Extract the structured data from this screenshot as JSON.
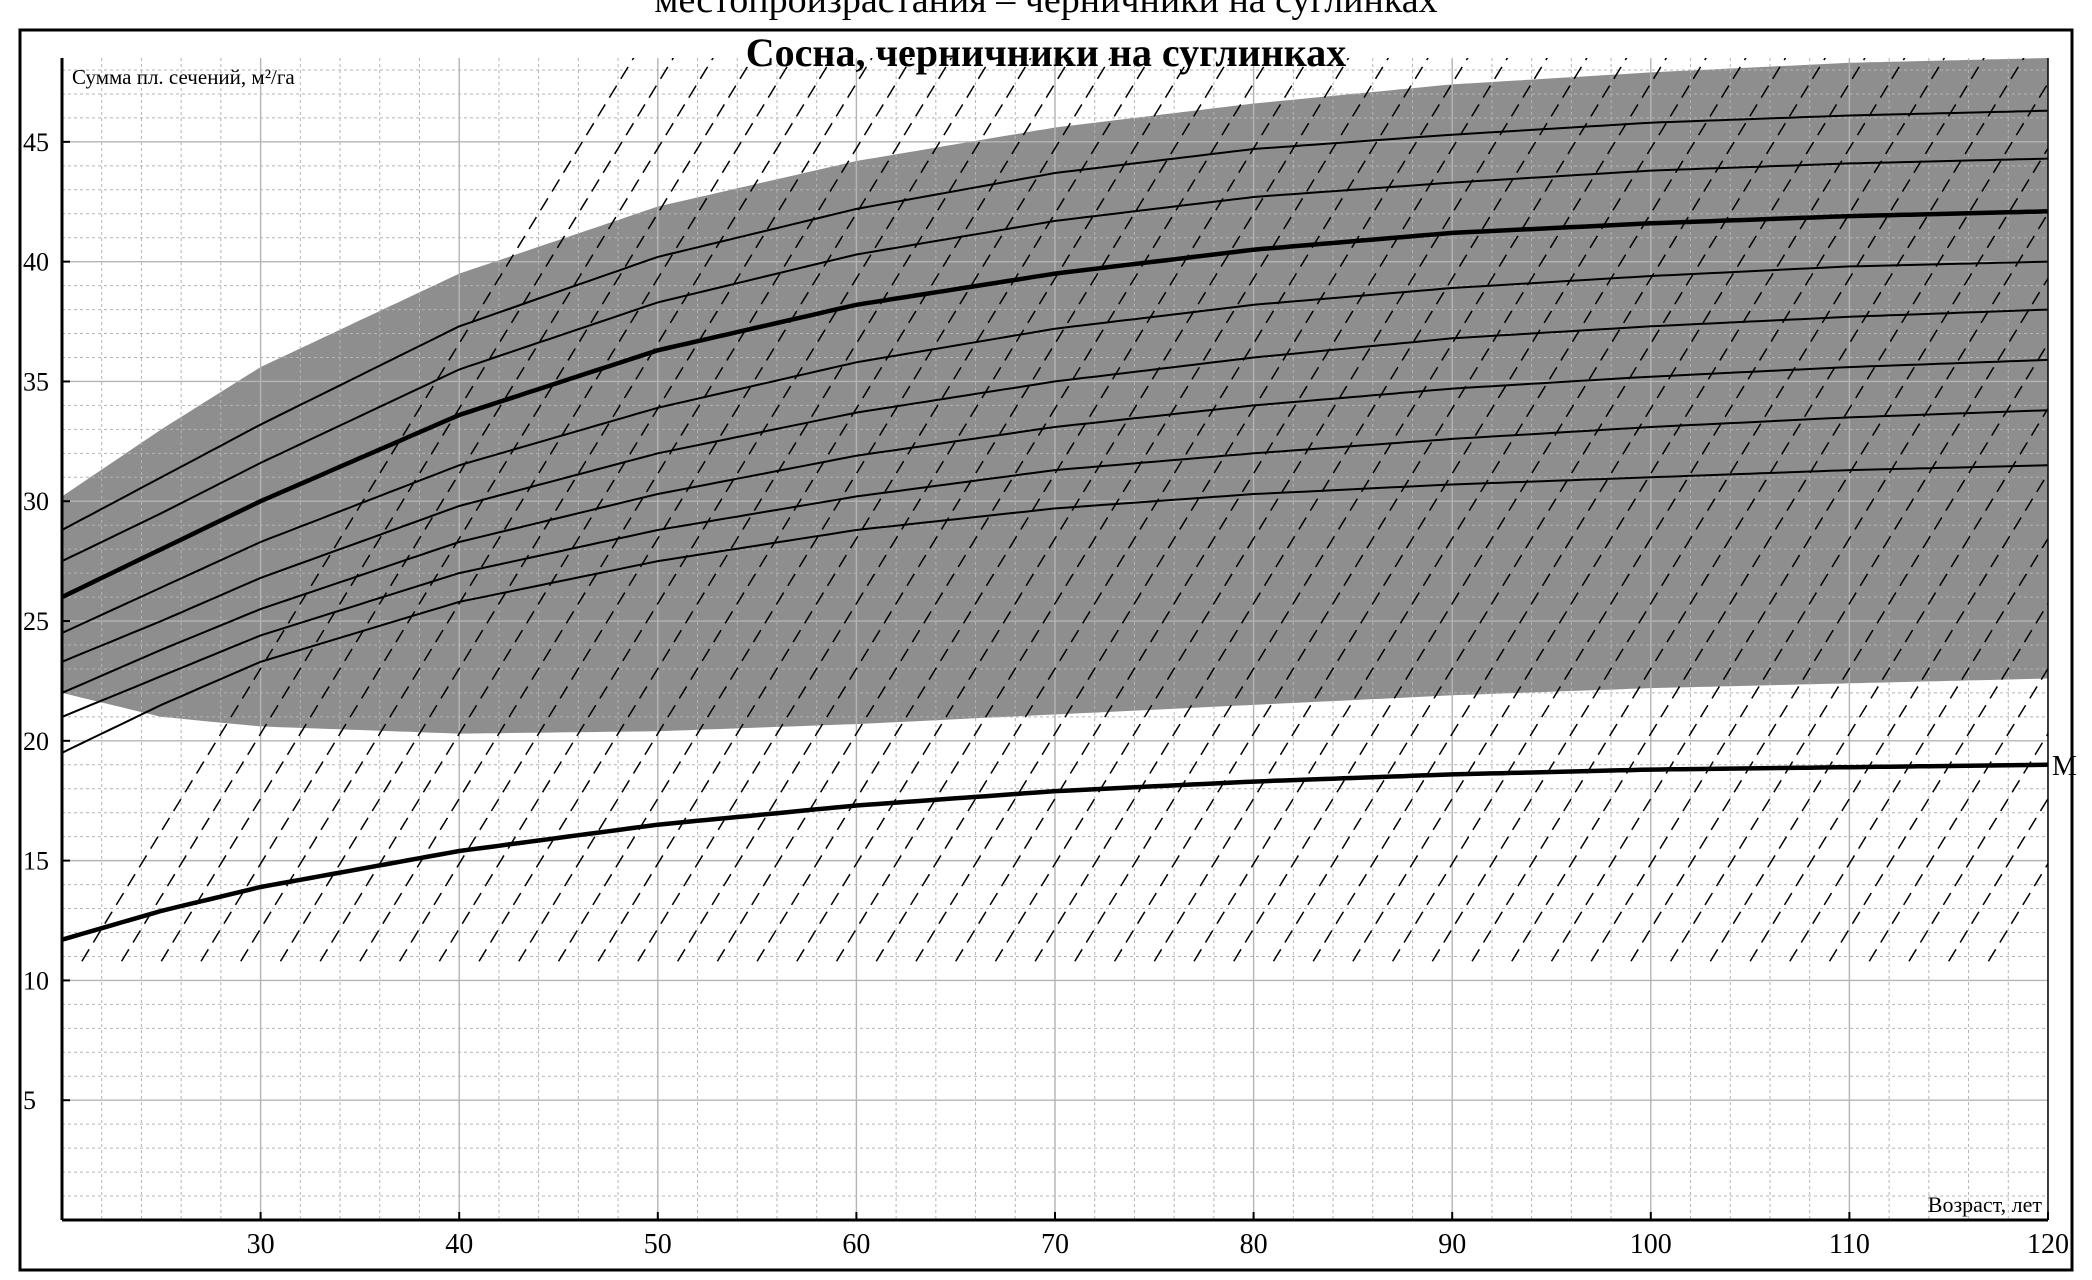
{
  "header_caption": "местопроизрастания – черничники на суглинках",
  "chart_data": {
    "type": "line",
    "title": "Сосна, черничники на суглинках",
    "xlabel": "Возраст, лет",
    "ylabel": "Сумма пл. сечений, м²/га",
    "xlim": [
      20,
      120
    ],
    "ylim": [
      0,
      48.5
    ],
    "x_ticks": [
      30,
      40,
      50,
      60,
      70,
      80,
      90,
      100,
      110,
      120
    ],
    "y_ticks": [
      5,
      10,
      15,
      20,
      25,
      30,
      35,
      40,
      45
    ],
    "grid": true,
    "legend": "none",
    "colors": {
      "band_fill": "#8e8e8e",
      "grid": "#b4b4b4",
      "curve": "#000000",
      "frame": "#000000"
    },
    "band": {
      "upper": {
        "x": [
          20,
          25,
          30,
          40,
          50,
          60,
          70,
          80,
          90,
          100,
          110,
          120
        ],
        "y": [
          30.2,
          33.0,
          35.6,
          39.5,
          42.3,
          44.2,
          45.6,
          46.6,
          47.4,
          47.9,
          48.3,
          48.5
        ]
      },
      "lower": {
        "x": [
          20,
          25,
          30,
          40,
          50,
          60,
          70,
          80,
          90,
          100,
          110,
          120
        ],
        "y": [
          22.0,
          21.0,
          20.6,
          20.3,
          20.4,
          20.7,
          21.1,
          21.5,
          21.9,
          22.2,
          22.4,
          22.6
        ]
      }
    },
    "x_grid": [
      20,
      22,
      24,
      26,
      28,
      30,
      32,
      34,
      36,
      38,
      40,
      42,
      44,
      46,
      48,
      50,
      52,
      54,
      56,
      58,
      60,
      62,
      64,
      66,
      68,
      70,
      72,
      74,
      76,
      78,
      80,
      82,
      84,
      86,
      88,
      90,
      92,
      94,
      96,
      98,
      100,
      102,
      104,
      106,
      108,
      110,
      112,
      114,
      116,
      118,
      120
    ],
    "series": [
      {
        "values": [
          19.5,
          21.5,
          23.3,
          25.8,
          27.5,
          28.8,
          29.7,
          30.3,
          30.7,
          31.0,
          31.3,
          31.5
        ],
        "bold": false
      },
      {
        "values": [
          21.0,
          22.7,
          24.4,
          27.0,
          28.8,
          30.2,
          31.3,
          32.0,
          32.6,
          33.1,
          33.5,
          33.8
        ],
        "bold": false
      },
      {
        "values": [
          22.0,
          23.8,
          25.5,
          28.3,
          30.3,
          31.9,
          33.1,
          34.0,
          34.7,
          35.2,
          35.6,
          35.9
        ],
        "bold": false
      },
      {
        "values": [
          23.3,
          25.0,
          26.8,
          29.8,
          32.0,
          33.7,
          35.0,
          36.0,
          36.8,
          37.3,
          37.7,
          38.0
        ],
        "bold": false
      },
      {
        "values": [
          24.5,
          26.4,
          28.3,
          31.5,
          33.9,
          35.8,
          37.2,
          38.2,
          38.9,
          39.4,
          39.8,
          40.0
        ],
        "bold": false
      },
      {
        "values": [
          26.0,
          28.0,
          30.0,
          33.6,
          36.3,
          38.2,
          39.5,
          40.5,
          41.2,
          41.6,
          41.9,
          42.1
        ],
        "bold": true
      },
      {
        "values": [
          27.5,
          29.5,
          31.6,
          35.5,
          38.3,
          40.3,
          41.7,
          42.7,
          43.3,
          43.8,
          44.1,
          44.3
        ],
        "bold": false
      },
      {
        "values": [
          28.8,
          31.0,
          33.2,
          37.3,
          40.2,
          42.2,
          43.7,
          44.7,
          45.3,
          45.8,
          46.1,
          46.3
        ],
        "bold": false
      },
      {
        "values": [
          11.7,
          12.9,
          13.9,
          15.4,
          16.5,
          17.3,
          17.9,
          18.3,
          18.6,
          18.8,
          18.9,
          19.0
        ],
        "bold": true,
        "label": "М"
      }
    ],
    "diagonals": {
      "solid_start_x": [
        21,
        23,
        25,
        27,
        29,
        31,
        33,
        35,
        37,
        39,
        41,
        43,
        45,
        47,
        49,
        51,
        53,
        55,
        57,
        59,
        61,
        63,
        65,
        67,
        69,
        71,
        73,
        75,
        77,
        79,
        81,
        83,
        85,
        87,
        89,
        91,
        93,
        95,
        97,
        99,
        101,
        103,
        105,
        107,
        109,
        111,
        113,
        115,
        117
      ],
      "solid_start_y": [
        10.8,
        10.8,
        10.8,
        10.8,
        10.8,
        10.8,
        10.8,
        10.8,
        10.8,
        10.8,
        10.8,
        10.8,
        10.8,
        10.8,
        10.8,
        10.8,
        10.8,
        10.8,
        10.8,
        10.8,
        10.8,
        10.8,
        10.8,
        10.8,
        10.8,
        10.8,
        10.8,
        10.8,
        10.8,
        10.8,
        10.8,
        10.8,
        10.8,
        10.8,
        10.8,
        10.8,
        10.8,
        10.8,
        10.8,
        10.8,
        10.8,
        10.8,
        10.8,
        10.8,
        10.8,
        10.8,
        10.8,
        10.8,
        10.8
      ]
    }
  }
}
